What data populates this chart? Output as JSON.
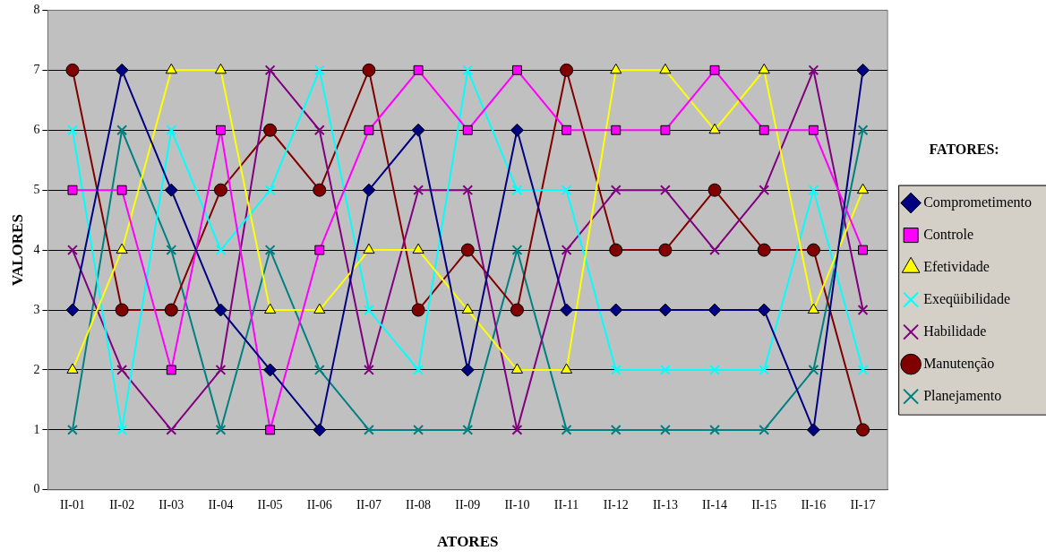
{
  "chart_data": {
    "type": "line",
    "xlabel": "ATORES",
    "ylabel": "VALORES",
    "legend_title": "FATORES:",
    "categories": [
      "II-01",
      "II-02",
      "II-03",
      "II-04",
      "II-05",
      "II-06",
      "II-07",
      "II-08",
      "II-09",
      "II-10",
      "II-11",
      "II-12",
      "II-13",
      "II-14",
      "II-15",
      "II-16",
      "II-17"
    ],
    "ylim": [
      0,
      8
    ],
    "yticks": [
      0,
      1,
      2,
      3,
      4,
      5,
      6,
      7,
      8
    ],
    "grid": "y",
    "legend": "right",
    "line_style": "solid",
    "series": [
      {
        "name": "Comprometimento",
        "color": "#000080",
        "marker": "diamond",
        "values": [
          3,
          7,
          5,
          3,
          2,
          1,
          5,
          6,
          2,
          6,
          3,
          3,
          3,
          3,
          3,
          1,
          7
        ]
      },
      {
        "name": "Controle",
        "color": "#ff00ff",
        "marker": "square",
        "values": [
          5,
          5,
          2,
          6,
          1,
          4,
          6,
          7,
          6,
          7,
          6,
          6,
          6,
          7,
          6,
          6,
          4
        ]
      },
      {
        "name": "Efetividade",
        "color": "#ffff00",
        "marker": "triangle",
        "values": [
          2,
          4,
          7,
          7,
          3,
          3,
          4,
          4,
          3,
          2,
          2,
          7,
          7,
          6,
          7,
          3,
          5
        ]
      },
      {
        "name": "Exeqüibilidade",
        "color": "#00ffff",
        "marker": "cross",
        "values": [
          6,
          1,
          6,
          4,
          5,
          7,
          3,
          2,
          7,
          5,
          5,
          2,
          2,
          2,
          2,
          5,
          2
        ]
      },
      {
        "name": "Habilidade",
        "color": "#800080",
        "marker": "cross",
        "values": [
          4,
          2,
          1,
          2,
          7,
          6,
          2,
          5,
          5,
          1,
          4,
          5,
          5,
          4,
          5,
          7,
          3
        ]
      },
      {
        "name": "Manutenção",
        "color": "#800000",
        "marker": "circle",
        "values": [
          7,
          3,
          3,
          5,
          6,
          5,
          7,
          3,
          4,
          3,
          7,
          4,
          4,
          5,
          4,
          4,
          1
        ]
      },
      {
        "name": "Planejamento",
        "color": "#008080",
        "marker": "cross",
        "values": [
          1,
          6,
          4,
          1,
          4,
          2,
          1,
          1,
          1,
          4,
          1,
          1,
          1,
          1,
          1,
          2,
          6
        ]
      }
    ]
  }
}
